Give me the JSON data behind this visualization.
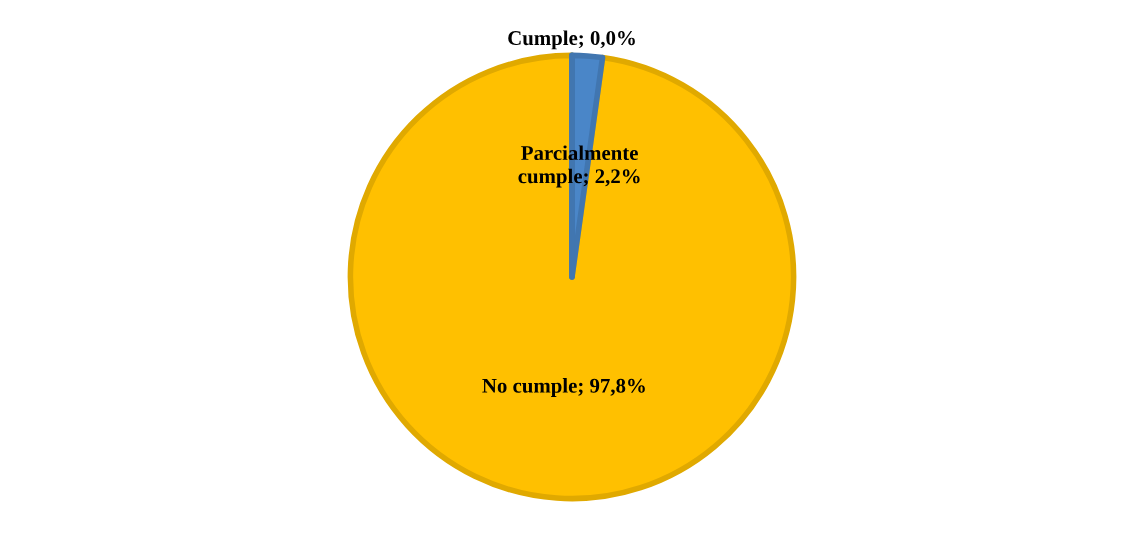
{
  "chart_data": {
    "type": "pie",
    "categories": [
      "Cumple",
      "Parcialmente cumple",
      "No cumple"
    ],
    "values": [
      0.0,
      2.2,
      97.8
    ],
    "colors": [
      "#4a86c8",
      "#4a86c8",
      "#ffc000"
    ],
    "value_labels": [
      "; 0,0%",
      "; 2,2%",
      "; 97,8%"
    ],
    "legend": false
  }
}
